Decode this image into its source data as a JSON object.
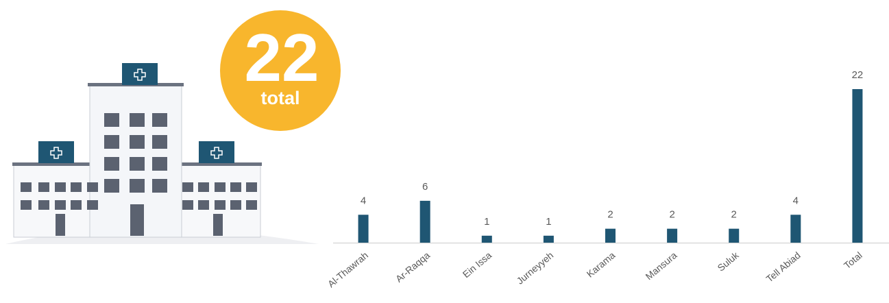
{
  "badge": {
    "number": 22,
    "label": "total"
  },
  "chart_data": {
    "type": "bar",
    "categories": [
      "Al-Thawrah",
      "Ar-Raqqa",
      "Ein Issa",
      "Jurneyyeh",
      "Karama",
      "Mansura",
      "Suluk",
      "Tell Abiad",
      "Total"
    ],
    "values": [
      4,
      6,
      1,
      1,
      2,
      2,
      2,
      4,
      22
    ],
    "color": "#1f5673",
    "ylim": [
      0,
      22
    ]
  }
}
